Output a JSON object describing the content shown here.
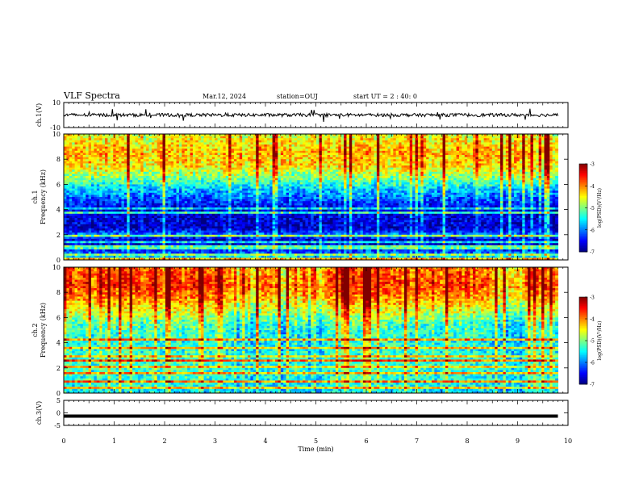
{
  "header": {
    "title": "VLF Spectra",
    "date": "Mar.12, 2024",
    "station": "station=OUJ",
    "start": "start UT =  2 : 40: 0"
  },
  "chart_data": [
    {
      "type": "line",
      "panel": "ch1-waveform",
      "ylabel": "ch.1(V)",
      "ylim": [
        -10,
        10
      ],
      "yticks": [
        "10",
        "-10"
      ],
      "xlim": [
        0,
        10
      ],
      "series": [
        {
          "x": [
            0,
            9.8
          ],
          "y": [
            0,
            0
          ]
        }
      ]
    },
    {
      "type": "heatmap",
      "panel": "ch1-spectrogram",
      "ylabel": "ch.1\nFrequency (kHz)",
      "ylim": [
        0,
        10
      ],
      "yticks": [
        "0",
        "2",
        "4",
        "6",
        "8",
        "10"
      ],
      "xlim": [
        0,
        10
      ],
      "data_extent_min": 9.8,
      "colorbar": {
        "label": "log(PSD)(V²/Hz)",
        "min": -7,
        "max": -3,
        "ticks": [
          "-3",
          "-4",
          "-5",
          "-6",
          "-7"
        ]
      },
      "profile": [
        {
          "f": 0.0,
          "v": -5.2
        },
        {
          "f": 0.6,
          "v": -6.2
        },
        {
          "f": 1.5,
          "v": -6.8
        },
        {
          "f": 2.0,
          "v": -6.0
        },
        {
          "f": 2.5,
          "v": -6.7
        },
        {
          "f": 4.0,
          "v": -6.6
        },
        {
          "f": 5.5,
          "v": -5.8
        },
        {
          "f": 6.5,
          "v": -5.0
        },
        {
          "f": 7.5,
          "v": -4.4
        },
        {
          "f": 8.5,
          "v": -4.2
        },
        {
          "f": 10.0,
          "v": -4.6
        }
      ]
    },
    {
      "type": "heatmap",
      "panel": "ch2-spectrogram",
      "ylabel": "ch.2\nFrequency (kHz)",
      "ylim": [
        0,
        10
      ],
      "yticks": [
        "0",
        "2",
        "4",
        "6",
        "8",
        "10"
      ],
      "xlim": [
        0,
        10
      ],
      "data_extent_min": 9.8,
      "colorbar": {
        "label": "log(PSD)(V²/Hz)",
        "min": -7,
        "max": -3,
        "ticks": [
          "-3",
          "-4",
          "-5",
          "-6",
          "-7"
        ]
      },
      "profile": [
        {
          "f": 0.0,
          "v": -5.6
        },
        {
          "f": 1.0,
          "v": -5.4
        },
        {
          "f": 2.5,
          "v": -5.3
        },
        {
          "f": 4.0,
          "v": -5.4
        },
        {
          "f": 5.5,
          "v": -5.2
        },
        {
          "f": 6.5,
          "v": -4.6
        },
        {
          "f": 7.5,
          "v": -4.1
        },
        {
          "f": 8.5,
          "v": -3.7
        },
        {
          "f": 10.0,
          "v": -3.9
        }
      ]
    },
    {
      "type": "line",
      "panel": "ch3-waveform",
      "ylabel": "ch.3(V)",
      "ylim": [
        -5,
        5
      ],
      "yticks": [
        "5",
        "0",
        "-5"
      ],
      "xlim": [
        0,
        10
      ],
      "xlabel": "Time (min)",
      "xticks": [
        "0",
        "1",
        "2",
        "3",
        "4",
        "5",
        "6",
        "7",
        "8",
        "9",
        "10"
      ],
      "series": [
        {
          "x": [
            0,
            9.8
          ],
          "y": [
            0,
            0
          ]
        }
      ]
    }
  ]
}
